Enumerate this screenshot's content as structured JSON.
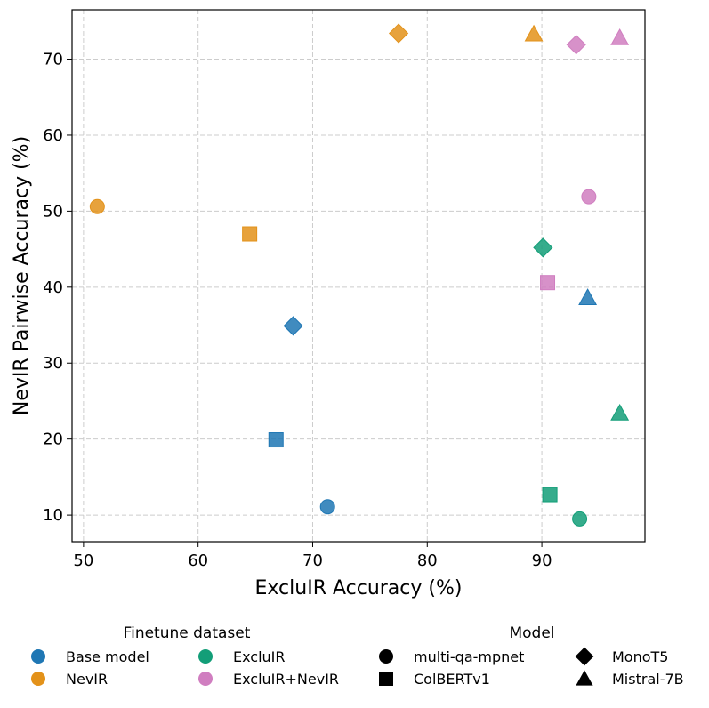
{
  "chart_data": {
    "type": "scatter",
    "xlabel": "ExcluIR Accuracy (%)",
    "ylabel": "NevIR Pairwise Accuracy (%)",
    "xlim": [
      49,
      99
    ],
    "ylim": [
      6.5,
      76.5
    ],
    "xticks": [
      50,
      60,
      70,
      80,
      90
    ],
    "yticks": [
      10,
      20,
      30,
      40,
      50,
      60,
      70
    ],
    "grid": true,
    "legend": {
      "placement": "bottom",
      "datasets_title": "Finetune dataset",
      "models_title": "Model",
      "datasets": [
        {
          "key": "base",
          "name": "Base model",
          "color": "#1f77b4"
        },
        {
          "key": "nevir",
          "name": "NevIR",
          "color": "#e3921a"
        },
        {
          "key": "excluir",
          "name": "ExcluIR",
          "color": "#139e78"
        },
        {
          "key": "both",
          "name": "ExcluIR+NevIR",
          "color": "#d07ec0"
        }
      ],
      "models": [
        {
          "key": "mpnet",
          "name": "multi-qa-mpnet",
          "marker": "circle"
        },
        {
          "key": "colbert",
          "name": "ColBERTv1",
          "marker": "square"
        },
        {
          "key": "monot5",
          "name": "MonoT5",
          "marker": "diamond"
        },
        {
          "key": "mistral",
          "name": "Mistral-7B",
          "marker": "triangle"
        }
      ]
    },
    "points": [
      {
        "dataset": "base",
        "model": "mpnet",
        "x": 71.3,
        "y": 11.1
      },
      {
        "dataset": "base",
        "model": "colbert",
        "x": 66.8,
        "y": 19.9
      },
      {
        "dataset": "base",
        "model": "monot5",
        "x": 68.3,
        "y": 34.9
      },
      {
        "dataset": "base",
        "model": "mistral",
        "x": 94.0,
        "y": 38.6
      },
      {
        "dataset": "nevir",
        "model": "mpnet",
        "x": 51.2,
        "y": 50.6
      },
      {
        "dataset": "nevir",
        "model": "colbert",
        "x": 64.5,
        "y": 47.0
      },
      {
        "dataset": "nevir",
        "model": "monot5",
        "x": 77.5,
        "y": 73.4
      },
      {
        "dataset": "nevir",
        "model": "mistral",
        "x": 89.3,
        "y": 73.3
      },
      {
        "dataset": "excluir",
        "model": "mpnet",
        "x": 93.3,
        "y": 9.5
      },
      {
        "dataset": "excluir",
        "model": "colbert",
        "x": 90.7,
        "y": 12.7
      },
      {
        "dataset": "excluir",
        "model": "monot5",
        "x": 90.1,
        "y": 45.2
      },
      {
        "dataset": "excluir",
        "model": "mistral",
        "x": 96.8,
        "y": 23.4
      },
      {
        "dataset": "both",
        "model": "mpnet",
        "x": 94.1,
        "y": 51.9
      },
      {
        "dataset": "both",
        "model": "colbert",
        "x": 90.5,
        "y": 40.6
      },
      {
        "dataset": "both",
        "model": "monot5",
        "x": 93.0,
        "y": 71.9
      },
      {
        "dataset": "both",
        "model": "mistral",
        "x": 96.8,
        "y": 72.8
      }
    ]
  }
}
